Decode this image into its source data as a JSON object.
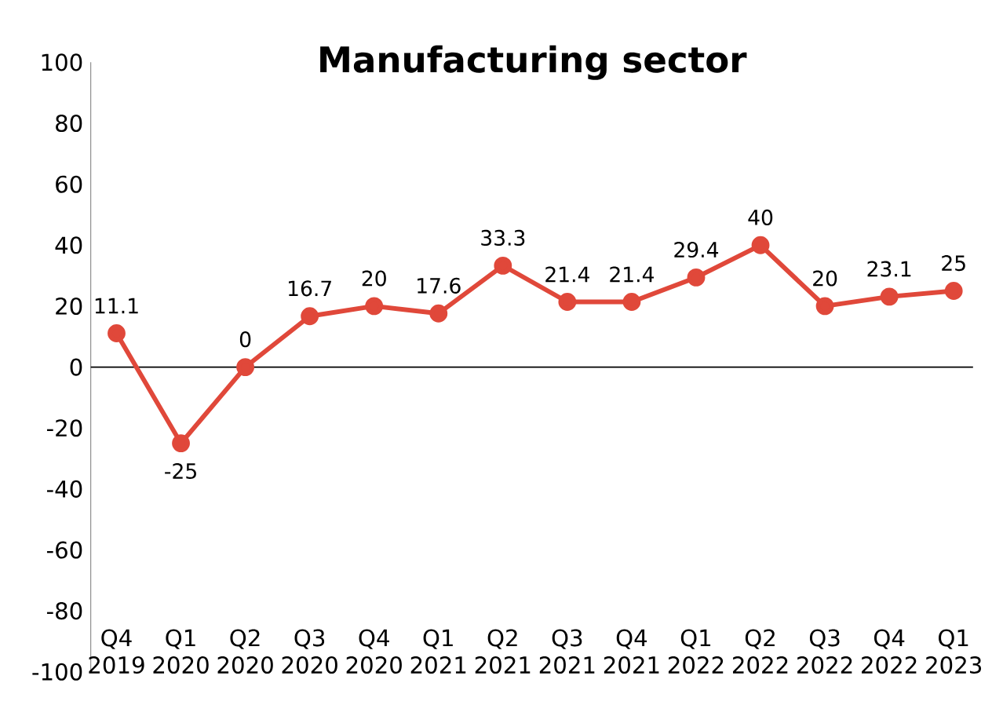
{
  "chart_data": {
    "type": "line",
    "title": "Manufacturing sector",
    "categories": [
      "Q4 2019",
      "Q1 2020",
      "Q2 2020",
      "Q3 2020",
      "Q4 2020",
      "Q1 2021",
      "Q2 2021",
      "Q3 2021",
      "Q4 2021",
      "Q1 2022",
      "Q2 2022",
      "Q3 2022",
      "Q4 2022",
      "Q1 2023"
    ],
    "values": [
      11.1,
      -25,
      0,
      16.7,
      20,
      17.6,
      33.3,
      21.4,
      21.4,
      29.4,
      40,
      20,
      23.1,
      25
    ],
    "value_labels": [
      "11.1",
      "-25",
      "0",
      "16.7",
      "20",
      "17.6",
      "33.3",
      "21.4",
      "21.4",
      "29.4",
      "40",
      "20",
      "23.1",
      "25"
    ],
    "color": "#e0483a",
    "marker": "circle",
    "line_style": "solid",
    "ylim": [
      -100,
      100
    ],
    "yticks": [
      -100,
      -80,
      -60,
      -40,
      -20,
      0,
      20,
      40,
      60,
      80,
      100
    ],
    "ref_lines": [
      {
        "axis": "y",
        "value": 0,
        "color": "#000000"
      }
    ]
  }
}
